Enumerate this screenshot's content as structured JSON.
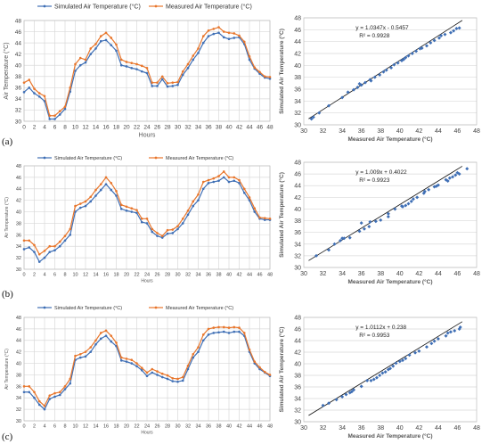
{
  "chart_data": [
    {
      "panel": "(a)",
      "type": "line",
      "xlabel": "Hours",
      "ylabel": "Air Temperature  (°C)",
      "xlim": [
        0,
        48
      ],
      "ylim": [
        30,
        48
      ],
      "xticks": [
        0,
        2,
        4,
        6,
        8,
        10,
        12,
        14,
        16,
        18,
        20,
        22,
        24,
        26,
        28,
        30,
        32,
        34,
        36,
        38,
        40,
        42,
        44,
        46,
        48
      ],
      "yticks": [
        30,
        32,
        34,
        36,
        38,
        40,
        42,
        44,
        46,
        48
      ],
      "legend_position": "top",
      "x": [
        0,
        1,
        2,
        3,
        4,
        5,
        6,
        7,
        8,
        9,
        10,
        11,
        12,
        13,
        14,
        15,
        16,
        17,
        18,
        19,
        20,
        21,
        22,
        23,
        24,
        25,
        26,
        27,
        28,
        29,
        30,
        31,
        32,
        33,
        34,
        35,
        36,
        37,
        38,
        39,
        40,
        41,
        42,
        43,
        44,
        45,
        46,
        47,
        48
      ],
      "series": [
        {
          "name": "Simulated Air Temperature  (°C)",
          "color": "#3f6fb5",
          "values": [
            35.2,
            36.0,
            35.0,
            34.4,
            33.6,
            30.4,
            30.4,
            31.2,
            32.2,
            35.3,
            39.0,
            40.0,
            40.5,
            42.0,
            43.0,
            44.3,
            44.5,
            43.6,
            42.6,
            40.0,
            39.8,
            39.5,
            39.3,
            38.9,
            38.6,
            36.3,
            36.3,
            37.5,
            36.2,
            36.3,
            36.5,
            38.3,
            39.5,
            41.0,
            42.2,
            44.0,
            45.2,
            45.6,
            45.8,
            45.0,
            44.7,
            44.9,
            45.0,
            43.8,
            41.0,
            39.4,
            38.5,
            37.8,
            37.6
          ]
        },
        {
          "name": "Measured Air Temperature  (°C)",
          "color": "#e8762c",
          "values": [
            36.9,
            37.4,
            35.8,
            35.0,
            34.5,
            31.0,
            31.0,
            31.8,
            32.6,
            36.0,
            40.2,
            41.3,
            41.0,
            43.0,
            43.8,
            45.2,
            45.8,
            44.9,
            43.7,
            41.0,
            40.6,
            40.4,
            40.2,
            39.9,
            39.5,
            36.9,
            36.9,
            38.0,
            36.8,
            36.9,
            37.0,
            38.9,
            40.2,
            41.7,
            43.0,
            45.2,
            46.2,
            46.5,
            46.8,
            46.0,
            45.8,
            45.7,
            45.3,
            44.2,
            41.6,
            39.6,
            38.8,
            38.0,
            37.9
          ]
        }
      ]
    },
    {
      "panel": "(a)",
      "type": "scatter",
      "xlabel": "Measured Air Temperature  (°C)",
      "ylabel": "Simulated Air Temperature  (°C)",
      "xlim": [
        30,
        48
      ],
      "ylim": [
        30,
        48
      ],
      "xticks": [
        30,
        32,
        34,
        36,
        38,
        40,
        42,
        44,
        46,
        48
      ],
      "yticks": [
        30,
        32,
        34,
        36,
        38,
        40,
        42,
        44,
        46,
        48
      ],
      "equation": "y = 1.0347x - 0.5457",
      "r2": "R² = 0.9928",
      "fit": {
        "slope": 1.0347,
        "intercept": -0.5457
      },
      "points": [
        [
          30.8,
          31.0
        ],
        [
          31.0,
          31.3
        ],
        [
          31.6,
          32.0
        ],
        [
          32.6,
          33.2
        ],
        [
          34.0,
          34.6
        ],
        [
          34.6,
          35.5
        ],
        [
          35.2,
          35.9
        ],
        [
          35.6,
          36.3
        ],
        [
          36.0,
          36.7
        ],
        [
          36.4,
          37.1
        ],
        [
          36.9,
          37.6
        ],
        [
          37.4,
          38.0
        ],
        [
          37.9,
          38.4
        ],
        [
          38.6,
          39.2
        ],
        [
          39.1,
          39.6
        ],
        [
          39.4,
          40.1
        ],
        [
          39.8,
          40.4
        ],
        [
          40.2,
          40.8
        ],
        [
          40.4,
          41.0
        ],
        [
          40.9,
          41.6
        ],
        [
          41.3,
          42.0
        ],
        [
          41.7,
          42.4
        ],
        [
          42.3,
          42.9
        ],
        [
          42.8,
          43.3
        ],
        [
          43.2,
          43.8
        ],
        [
          43.6,
          44.2
        ],
        [
          44.1,
          44.6
        ],
        [
          44.7,
          45.2
        ],
        [
          45.3,
          45.5
        ],
        [
          45.6,
          45.8
        ],
        [
          45.9,
          46.2
        ],
        [
          46.2,
          46.3
        ],
        [
          38.3,
          38.9
        ],
        [
          37.0,
          37.4
        ],
        [
          35.8,
          36.9
        ],
        [
          40.6,
          41.3
        ],
        [
          42.1,
          42.8
        ],
        [
          44.3,
          45.0
        ]
      ]
    },
    {
      "panel": "(b)",
      "type": "line",
      "xlabel": "Hours",
      "ylabel": "Air Temperature  (°C)",
      "xlim": [
        0,
        48
      ],
      "ylim": [
        30,
        48
      ],
      "xticks": [
        0,
        2,
        4,
        6,
        8,
        10,
        12,
        14,
        16,
        18,
        20,
        22,
        24,
        26,
        28,
        30,
        32,
        34,
        36,
        38,
        40,
        42,
        44,
        46,
        48
      ],
      "yticks": [
        30,
        32,
        34,
        36,
        38,
        40,
        42,
        44,
        46,
        48
      ],
      "legend_position": "top",
      "x": [
        0,
        1,
        2,
        3,
        4,
        5,
        6,
        7,
        8,
        9,
        10,
        11,
        12,
        13,
        14,
        15,
        16,
        17,
        18,
        19,
        20,
        21,
        22,
        23,
        24,
        25,
        26,
        27,
        28,
        29,
        30,
        31,
        32,
        33,
        34,
        35,
        36,
        37,
        38,
        39,
        40,
        41,
        42,
        43,
        44,
        45,
        46,
        47,
        48
      ],
      "series": [
        {
          "name": "Simulated Air Temperature  (°C)",
          "color": "#3f6fb5",
          "values": [
            33.5,
            33.8,
            33.0,
            31.3,
            32.0,
            33.0,
            33.3,
            34.0,
            35.0,
            36.0,
            40.0,
            40.7,
            41.0,
            41.8,
            42.8,
            43.8,
            44.8,
            43.8,
            42.8,
            40.5,
            40.2,
            40.0,
            39.8,
            38.2,
            38.0,
            36.5,
            35.8,
            35.5,
            36.2,
            36.3,
            37.0,
            38.0,
            39.5,
            41.0,
            42.0,
            44.0,
            45.0,
            45.2,
            45.4,
            46.0,
            45.2,
            45.4,
            45.0,
            43.3,
            42.0,
            40.0,
            38.8,
            38.6,
            38.6
          ]
        },
        {
          "name": "Measured Air Temperature  (°C)",
          "color": "#e8762c",
          "values": [
            35.0,
            35.0,
            34.2,
            32.6,
            33.2,
            34.0,
            34.0,
            34.8,
            35.8,
            37.0,
            41.0,
            41.4,
            41.8,
            42.6,
            43.8,
            44.8,
            46.0,
            45.0,
            43.6,
            41.2,
            40.9,
            40.6,
            40.3,
            38.8,
            38.8,
            37.0,
            36.3,
            35.8,
            36.8,
            36.9,
            37.5,
            38.8,
            40.2,
            41.8,
            43.0,
            45.2,
            45.5,
            45.8,
            46.2,
            47.0,
            46.0,
            46.0,
            45.5,
            44.0,
            42.5,
            40.6,
            39.0,
            38.9,
            38.8
          ]
        }
      ]
    },
    {
      "panel": "(b)",
      "type": "scatter",
      "xlabel": "Measured Air Temperature  (°C)",
      "ylabel": "Simulated Air Temperature  (°C)",
      "xlim": [
        30,
        48
      ],
      "ylim": [
        30,
        48
      ],
      "xticks": [
        30,
        32,
        34,
        36,
        38,
        40,
        42,
        44,
        46,
        48
      ],
      "yticks": [
        30,
        32,
        34,
        36,
        38,
        40,
        42,
        44,
        46,
        48
      ],
      "equation": "y = 1.009x + 0.4022",
      "r2": "R² = 0.9923",
      "fit": {
        "slope": 1.009,
        "intercept": 0.4022
      },
      "points": [
        [
          31.3,
          32.0
        ],
        [
          32.6,
          33.0
        ],
        [
          33.2,
          34.0
        ],
        [
          33.8,
          34.6
        ],
        [
          34.0,
          35.0
        ],
        [
          34.2,
          35.0
        ],
        [
          34.8,
          35.1
        ],
        [
          35.8,
          36.2
        ],
        [
          36.3,
          36.6
        ],
        [
          36.8,
          37.0
        ],
        [
          36.9,
          37.8
        ],
        [
          37.5,
          37.9
        ],
        [
          38.0,
          38.1
        ],
        [
          38.8,
          38.7
        ],
        [
          38.8,
          39.2
        ],
        [
          39.5,
          40.0
        ],
        [
          40.2,
          40.5
        ],
        [
          40.3,
          40.4
        ],
        [
          40.6,
          40.6
        ],
        [
          40.9,
          40.9
        ],
        [
          41.2,
          41.3
        ],
        [
          41.4,
          41.7
        ],
        [
          41.8,
          42.0
        ],
        [
          42.5,
          42.7
        ],
        [
          42.6,
          43.0
        ],
        [
          43.0,
          43.3
        ],
        [
          43.6,
          43.8
        ],
        [
          43.8,
          43.9
        ],
        [
          44.0,
          44.1
        ],
        [
          44.8,
          45.0
        ],
        [
          45.0,
          44.8
        ],
        [
          45.2,
          45.3
        ],
        [
          45.5,
          45.5
        ],
        [
          45.8,
          45.8
        ],
        [
          46.0,
          46.2
        ],
        [
          46.2,
          46.0
        ],
        [
          47.0,
          46.9
        ],
        [
          36.0,
          37.6
        ]
      ]
    },
    {
      "panel": "(c)",
      "type": "line",
      "xlabel": "Hours",
      "ylabel": "Air Temperature  (°C)",
      "xlim": [
        0,
        48
      ],
      "ylim": [
        30,
        48
      ],
      "xticks": [
        0,
        2,
        4,
        6,
        8,
        10,
        12,
        14,
        16,
        18,
        20,
        22,
        24,
        26,
        28,
        30,
        32,
        34,
        36,
        38,
        40,
        42,
        44,
        46,
        48
      ],
      "yticks": [
        30,
        32,
        34,
        36,
        38,
        40,
        42,
        44,
        46,
        48
      ],
      "legend_position": "top",
      "x": [
        0,
        1,
        2,
        3,
        4,
        5,
        6,
        7,
        8,
        9,
        10,
        11,
        12,
        13,
        14,
        15,
        16,
        17,
        18,
        19,
        20,
        21,
        22,
        23,
        24,
        25,
        26,
        27,
        28,
        29,
        30,
        31,
        32,
        33,
        34,
        35,
        36,
        37,
        38,
        39,
        40,
        41,
        42,
        43,
        44,
        45,
        46,
        47,
        48
      ],
      "series": [
        {
          "name": "Simulated Air Temperature  (°C)",
          "color": "#3f6fb5",
          "values": [
            35.0,
            35.0,
            34.0,
            32.8,
            32.0,
            33.8,
            34.2,
            34.5,
            35.5,
            36.5,
            40.6,
            41.0,
            41.2,
            42.0,
            43.3,
            44.3,
            44.8,
            43.8,
            43.0,
            40.5,
            40.3,
            40.0,
            39.5,
            38.8,
            37.8,
            38.4,
            38.0,
            37.6,
            37.3,
            36.9,
            36.8,
            37.0,
            39.0,
            41.0,
            42.0,
            44.0,
            45.0,
            45.3,
            45.4,
            45.5,
            45.3,
            45.5,
            45.5,
            44.8,
            42.0,
            40.0,
            39.0,
            38.4,
            37.8
          ]
        },
        {
          "name": "Measured Air Temperature  (°C)",
          "color": "#e8762c",
          "values": [
            36.0,
            36.0,
            35.0,
            33.4,
            32.6,
            34.4,
            34.8,
            35.0,
            36.0,
            37.3,
            41.3,
            41.6,
            42.0,
            42.8,
            44.0,
            45.3,
            45.7,
            44.8,
            43.6,
            41.0,
            40.8,
            40.6,
            40.0,
            39.2,
            38.4,
            39.0,
            38.6,
            38.2,
            37.9,
            37.4,
            37.3,
            37.6,
            39.6,
            41.6,
            42.8,
            45.0,
            46.0,
            46.2,
            46.3,
            46.3,
            46.2,
            46.3,
            46.2,
            45.3,
            42.4,
            40.3,
            39.3,
            38.5,
            38.0
          ]
        }
      ]
    },
    {
      "panel": "(c)",
      "type": "scatter",
      "xlabel": "Measured Air Temperature  (°C)",
      "ylabel": "Simulated Air Temperature  (°C)",
      "xlim": [
        30,
        48
      ],
      "ylim": [
        30,
        48
      ],
      "xticks": [
        30,
        32,
        34,
        36,
        38,
        40,
        42,
        44,
        46,
        48
      ],
      "yticks": [
        30,
        32,
        34,
        36,
        38,
        40,
        42,
        44,
        46,
        48
      ],
      "equation": "y = 1.0112x + 0.238",
      "r2": "R² = 0.9953",
      "fit": {
        "slope": 1.0112,
        "intercept": 0.238
      },
      "points": [
        [
          32.0,
          32.8
        ],
        [
          32.6,
          33.2
        ],
        [
          33.4,
          33.8
        ],
        [
          34.0,
          34.3
        ],
        [
          34.4,
          34.7
        ],
        [
          34.8,
          35.0
        ],
        [
          35.0,
          35.2
        ],
        [
          35.2,
          35.5
        ],
        [
          36.0,
          36.1
        ],
        [
          37.0,
          37.1
        ],
        [
          37.3,
          37.3
        ],
        [
          37.6,
          37.6
        ],
        [
          37.9,
          38.0
        ],
        [
          38.2,
          38.4
        ],
        [
          38.5,
          38.6
        ],
        [
          39.0,
          39.2
        ],
        [
          39.3,
          39.6
        ],
        [
          39.6,
          40.1
        ],
        [
          40.0,
          40.4
        ],
        [
          40.3,
          40.6
        ],
        [
          40.6,
          40.9
        ],
        [
          41.0,
          41.5
        ],
        [
          41.6,
          41.9
        ],
        [
          42.0,
          42.2
        ],
        [
          42.8,
          42.9
        ],
        [
          43.6,
          43.9
        ],
        [
          44.0,
          44.3
        ],
        [
          44.8,
          44.8
        ],
        [
          45.0,
          45.3
        ],
        [
          45.3,
          45.5
        ],
        [
          45.7,
          45.7
        ],
        [
          46.2,
          46.0
        ],
        [
          46.3,
          46.3
        ],
        [
          36.6,
          37.1
        ],
        [
          38.8,
          39.0
        ],
        [
          43.3,
          43.5
        ]
      ]
    }
  ],
  "panel_labels": [
    "(a)",
    "(b)",
    "(c)"
  ]
}
